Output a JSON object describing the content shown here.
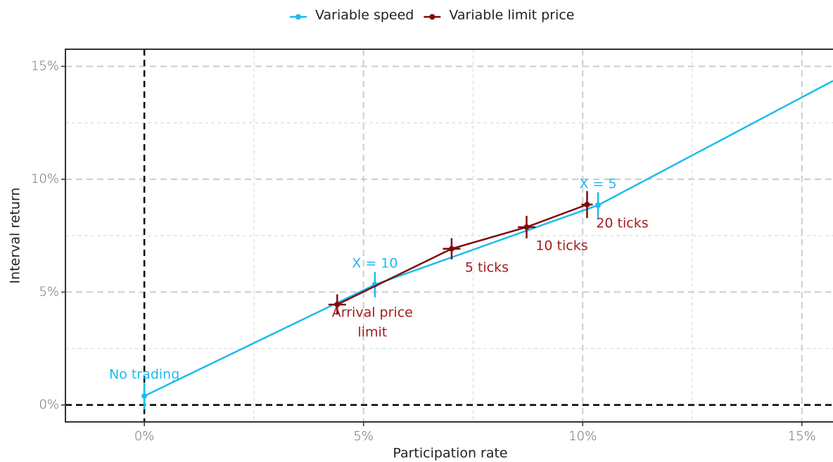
{
  "chart_data": {
    "type": "line",
    "x_label": "Participation rate",
    "y_label": "Interval return",
    "xlim": [
      -1.8,
      15.71
    ],
    "ylim": [
      -0.75,
      15.76
    ],
    "xticks": [
      {
        "value": 0,
        "label": "0%"
      },
      {
        "value": 5,
        "label": "5%"
      },
      {
        "value": 10,
        "label": "10%"
      },
      {
        "value": 15,
        "label": "15%"
      }
    ],
    "yticks": [
      {
        "value": 0,
        "label": "0%"
      },
      {
        "value": 5,
        "label": "5%"
      },
      {
        "value": 10,
        "label": "10%"
      },
      {
        "value": 15,
        "label": "15%"
      }
    ],
    "xminor": [
      2.5,
      7.5,
      12.5
    ],
    "yminor": [
      2.5,
      7.5,
      12.5
    ],
    "grid": true,
    "reference_lines": {
      "x": 0,
      "y": 0
    },
    "legend": "top",
    "series": [
      {
        "name": "Variable speed",
        "color": "#1bbcf0",
        "x": [
          0,
          5.26,
          10.35,
          15.71
        ],
        "values": [
          0.4,
          5.33,
          8.85,
          14.36
        ],
        "yerr": [
          0.6,
          0.56,
          0.57,
          null
        ],
        "xerr": [
          null,
          null,
          null,
          null
        ],
        "point_labels": [
          "No trading",
          "X = 10",
          "X = 5",
          null
        ]
      },
      {
        "name": "Variable limit price",
        "color": "#7f0a0a",
        "x": [
          4.4,
          7.01,
          8.72,
          10.1
        ],
        "values": [
          4.45,
          6.92,
          7.88,
          8.88
        ],
        "yerr": [
          0.45,
          0.47,
          0.5,
          0.6
        ],
        "xerr": [
          0.2,
          0.2,
          0.2,
          0.13
        ],
        "point_labels": [
          [
            "Arrival price",
            "limit"
          ],
          "5 ticks",
          "10 ticks",
          "20 ticks"
        ]
      }
    ]
  }
}
